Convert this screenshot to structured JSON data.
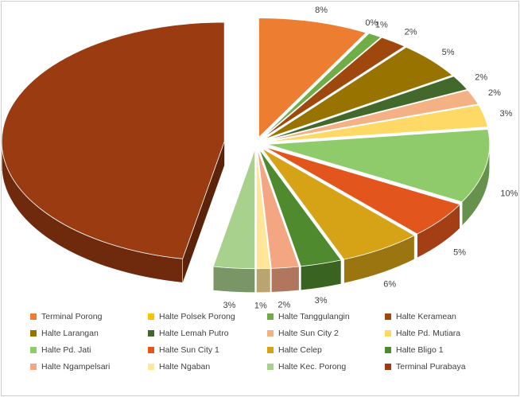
{
  "chart_data": {
    "type": "pie",
    "style": "3d-exploded",
    "title": "",
    "legend_position": "bottom",
    "slices": [
      {
        "label": "Terminal Porong",
        "value": 8,
        "value_label": "8%",
        "color": "#ED7D31"
      },
      {
        "label": "Halte Polsek Porong",
        "value": 0,
        "value_label": "0%",
        "color": "#FFC000"
      },
      {
        "label": "Halte Tanggulangin",
        "value": 1,
        "value_label": "1%",
        "color": "#70AD47"
      },
      {
        "label": "Halte Keramean",
        "value": 2,
        "value_label": "2%",
        "color": "#9E480E"
      },
      {
        "label": "Halte Larangan",
        "value": 5,
        "value_label": "5%",
        "color": "#997300"
      },
      {
        "label": "Halte Lemah Putro",
        "value": 2,
        "value_label": "2%",
        "color": "#43682B"
      },
      {
        "label": "Halte Sun City 2",
        "value": 2,
        "value_label": "2%",
        "color": "#F4B183"
      },
      {
        "label": "Halte Pd. Mutiara",
        "value": 3,
        "value_label": "3%",
        "color": "#FFD966"
      },
      {
        "label": "Halte Pd. Jati",
        "value": 10,
        "value_label": "10%",
        "color": "#8FCB6B"
      },
      {
        "label": "Halte Sun City 1",
        "value": 5,
        "value_label": "5%",
        "color": "#E2561D"
      },
      {
        "label": "Halte Celep",
        "value": 6,
        "value_label": "6%",
        "color": "#D6A316"
      },
      {
        "label": "Halte Bligo 1",
        "value": 3,
        "value_label": "3%",
        "color": "#4F8A2E"
      },
      {
        "label": "Halte Ngampelsari",
        "value": 2,
        "value_label": "2%",
        "color": "#F4A582"
      },
      {
        "label": "Halte Ngaban",
        "value": 1,
        "value_label": "1%",
        "color": "#FFE699"
      },
      {
        "label": "Halte Kec. Porong",
        "value": 3,
        "value_label": "3%",
        "color": "#A9D18E"
      },
      {
        "label": "Terminal Purabaya",
        "value": 47,
        "value_label": "47%",
        "color": "#9A3B12"
      }
    ]
  }
}
